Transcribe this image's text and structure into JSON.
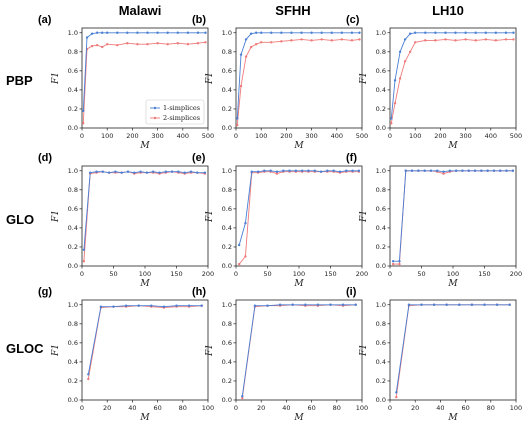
{
  "columns": [
    "Malawi",
    "SFHH",
    "LH10"
  ],
  "rows": [
    "PBP",
    "GLO",
    "GLOC"
  ],
  "panel_labels": [
    "(a)",
    "(b)",
    "(c)",
    "(d)",
    "(e)",
    "(f)",
    "(g)",
    "(h)",
    "(i)"
  ],
  "colors": {
    "series1": "#4a7fd4",
    "series2": "#ef7a7a",
    "axis": "#222222"
  },
  "chart_data": [
    {
      "type": "line",
      "panel": "(a)",
      "xlabel": "M",
      "ylabel": "F1",
      "xlim": [
        0,
        500
      ],
      "ylim": [
        0,
        1.05
      ],
      "xticks": [
        0,
        100,
        200,
        300,
        400,
        500
      ],
      "yticks": [
        0.0,
        0.2,
        0.4,
        0.6,
        0.8,
        1.0
      ],
      "legend": "center",
      "series": [
        {
          "name": "1-simplices",
          "x": [
            5,
            20,
            40,
            60,
            80,
            100,
            140,
            180,
            220,
            260,
            300,
            340,
            380,
            420,
            460,
            490
          ],
          "values": [
            0.18,
            0.95,
            0.99,
            1.0,
            1.0,
            1.0,
            1.0,
            1.0,
            1.0,
            1.0,
            1.0,
            1.0,
            1.0,
            1.0,
            1.0,
            1.0
          ]
        },
        {
          "name": "2-simplices",
          "x": [
            5,
            20,
            40,
            60,
            80,
            100,
            140,
            180,
            220,
            260,
            300,
            340,
            380,
            420,
            460,
            490
          ],
          "values": [
            0.05,
            0.83,
            0.86,
            0.87,
            0.85,
            0.88,
            0.87,
            0.89,
            0.88,
            0.88,
            0.89,
            0.88,
            0.89,
            0.88,
            0.89,
            0.9
          ]
        }
      ]
    },
    {
      "type": "line",
      "panel": "(b)",
      "xlabel": "M",
      "ylabel": "F1",
      "xlim": [
        0,
        500
      ],
      "ylim": [
        0,
        1.05
      ],
      "xticks": [
        0,
        100,
        200,
        300,
        400,
        500
      ],
      "yticks": [
        0.0,
        0.2,
        0.4,
        0.6,
        0.8,
        1.0
      ],
      "series": [
        {
          "x": [
            5,
            20,
            40,
            60,
            80,
            100,
            140,
            180,
            220,
            260,
            300,
            340,
            380,
            420,
            460,
            490
          ],
          "values": [
            0.1,
            0.77,
            0.93,
            0.99,
            1.0,
            1.0,
            1.0,
            1.0,
            1.0,
            1.0,
            1.0,
            1.0,
            1.0,
            1.0,
            1.0,
            1.0
          ]
        },
        {
          "x": [
            5,
            20,
            40,
            60,
            80,
            100,
            140,
            180,
            220,
            260,
            300,
            340,
            380,
            420,
            460,
            490
          ],
          "values": [
            0.03,
            0.44,
            0.75,
            0.85,
            0.88,
            0.9,
            0.9,
            0.91,
            0.92,
            0.93,
            0.92,
            0.93,
            0.92,
            0.93,
            0.92,
            0.93
          ]
        }
      ]
    },
    {
      "type": "line",
      "panel": "(c)",
      "xlabel": "M",
      "ylabel": "F1",
      "xlim": [
        0,
        500
      ],
      "ylim": [
        0,
        1.05
      ],
      "xticks": [
        0,
        100,
        200,
        300,
        400,
        500
      ],
      "yticks": [
        0.0,
        0.2,
        0.4,
        0.6,
        0.8,
        1.0
      ],
      "series": [
        {
          "x": [
            5,
            20,
            40,
            60,
            80,
            100,
            140,
            180,
            220,
            260,
            300,
            340,
            380,
            420,
            460,
            490
          ],
          "values": [
            0.1,
            0.5,
            0.8,
            0.93,
            0.99,
            1.0,
            1.0,
            1.0,
            1.0,
            1.0,
            1.0,
            1.0,
            1.0,
            1.0,
            1.0,
            1.0
          ]
        },
        {
          "x": [
            5,
            20,
            40,
            60,
            80,
            100,
            140,
            180,
            220,
            260,
            300,
            340,
            380,
            420,
            460,
            490
          ],
          "values": [
            0.05,
            0.26,
            0.52,
            0.7,
            0.8,
            0.9,
            0.92,
            0.92,
            0.93,
            0.92,
            0.93,
            0.92,
            0.93,
            0.92,
            0.93,
            0.93
          ]
        }
      ]
    },
    {
      "type": "line",
      "panel": "(d)",
      "xlabel": "M",
      "ylabel": "F1",
      "xlim": [
        0,
        200
      ],
      "ylim": [
        0,
        1.05
      ],
      "xticks": [
        0,
        50,
        100,
        150,
        200
      ],
      "yticks": [
        0.0,
        0.2,
        0.4,
        0.6,
        0.8,
        1.0
      ],
      "series": [
        {
          "x": [
            3,
            13,
            23,
            33,
            43,
            53,
            63,
            73,
            83,
            93,
            103,
            113,
            123,
            133,
            143,
            153,
            163,
            173,
            183,
            195
          ],
          "values": [
            0.17,
            0.98,
            0.99,
            0.99,
            0.98,
            0.99,
            0.98,
            0.99,
            0.98,
            0.99,
            0.98,
            0.99,
            0.98,
            0.99,
            0.99,
            0.99,
            0.98,
            0.99,
            0.98,
            0.98
          ]
        },
        {
          "x": [
            3,
            13,
            23,
            33,
            43,
            53,
            63,
            73,
            83,
            93,
            103,
            113,
            123,
            133,
            143,
            153,
            163,
            173,
            183,
            195
          ],
          "values": [
            0.05,
            0.97,
            0.98,
            0.99,
            0.98,
            0.98,
            0.98,
            0.99,
            0.97,
            0.98,
            0.98,
            0.98,
            0.97,
            0.98,
            0.99,
            0.98,
            0.97,
            0.98,
            0.98,
            0.97
          ]
        }
      ]
    },
    {
      "type": "line",
      "panel": "(e)",
      "xlabel": "M",
      "ylabel": "F1",
      "xlim": [
        0,
        200
      ],
      "ylim": [
        0,
        1.05
      ],
      "xticks": [
        0,
        50,
        100,
        150,
        200
      ],
      "yticks": [
        0.0,
        0.2,
        0.4,
        0.6,
        0.8,
        1.0
      ],
      "series": [
        {
          "x": [
            5,
            15,
            25,
            35,
            45,
            55,
            65,
            75,
            85,
            95,
            105,
            115,
            125,
            135,
            145,
            155,
            165,
            175,
            185,
            195
          ],
          "values": [
            0.22,
            0.45,
            0.99,
            0.99,
            1.0,
            1.0,
            0.99,
            1.0,
            1.0,
            1.0,
            1.0,
            1.0,
            1.0,
            0.99,
            1.0,
            1.0,
            0.99,
            1.0,
            1.0,
            1.0
          ]
        },
        {
          "x": [
            5,
            15,
            25,
            35,
            45,
            55,
            65,
            75,
            85,
            95,
            105,
            115,
            125,
            135,
            145,
            155,
            165,
            175,
            185,
            195
          ],
          "values": [
            0.02,
            0.1,
            0.98,
            0.98,
            0.99,
            0.99,
            0.97,
            0.99,
            0.99,
            0.99,
            0.99,
            0.99,
            0.99,
            0.99,
            0.99,
            0.99,
            0.98,
            0.99,
            0.99,
            0.99
          ]
        }
      ]
    },
    {
      "type": "line",
      "panel": "(f)",
      "xlabel": "M",
      "ylabel": "F1",
      "xlim": [
        0,
        200
      ],
      "ylim": [
        0,
        1.05
      ],
      "xticks": [
        0,
        50,
        100,
        150,
        200
      ],
      "yticks": [
        0.0,
        0.2,
        0.4,
        0.6,
        0.8,
        1.0
      ],
      "series": [
        {
          "x": [
            5,
            15,
            25,
            35,
            45,
            55,
            65,
            75,
            85,
            95,
            105,
            115,
            125,
            135,
            145,
            155,
            165,
            175,
            185,
            195
          ],
          "values": [
            0.05,
            0.05,
            1.0,
            1.0,
            1.0,
            1.0,
            1.0,
            1.0,
            0.99,
            1.0,
            1.0,
            1.0,
            1.0,
            1.0,
            1.0,
            1.0,
            1.0,
            1.0,
            1.0,
            1.0
          ]
        },
        {
          "x": [
            5,
            15,
            25,
            35,
            45,
            55,
            65,
            75,
            85,
            95,
            105,
            115,
            125,
            135,
            145,
            155,
            165,
            175,
            185,
            195
          ],
          "values": [
            0.02,
            0.02,
            1.0,
            1.0,
            1.0,
            1.0,
            1.0,
            0.99,
            0.97,
            0.99,
            1.0,
            1.0,
            1.0,
            1.0,
            1.0,
            1.0,
            1.0,
            1.0,
            1.0,
            1.0
          ]
        }
      ]
    },
    {
      "type": "line",
      "panel": "(g)",
      "xlabel": "M",
      "ylabel": "F1",
      "xlim": [
        0,
        100
      ],
      "ylim": [
        0,
        1.05
      ],
      "xticks": [
        0,
        20,
        40,
        60,
        80,
        100
      ],
      "yticks": [
        0.0,
        0.2,
        0.4,
        0.6,
        0.8,
        1.0
      ],
      "series": [
        {
          "x": [
            5,
            15,
            25,
            35,
            45,
            55,
            65,
            75,
            85,
            95
          ],
          "values": [
            0.27,
            0.98,
            0.98,
            0.99,
            0.99,
            0.99,
            0.98,
            0.99,
            0.99,
            0.99
          ]
        },
        {
          "x": [
            5,
            15,
            25,
            35,
            45,
            55,
            65,
            75,
            85,
            95
          ],
          "values": [
            0.22,
            0.97,
            0.98,
            0.98,
            0.99,
            0.98,
            0.97,
            0.98,
            0.98,
            0.99
          ]
        }
      ]
    },
    {
      "type": "line",
      "panel": "(h)",
      "xlabel": "M",
      "ylabel": "F1",
      "xlim": [
        0,
        100
      ],
      "ylim": [
        0,
        1.05
      ],
      "xticks": [
        0,
        20,
        40,
        60,
        80,
        100
      ],
      "yticks": [
        0.0,
        0.2,
        0.4,
        0.6,
        0.8,
        1.0
      ],
      "series": [
        {
          "x": [
            5,
            15,
            25,
            35,
            45,
            55,
            65,
            75,
            85,
            95
          ],
          "values": [
            0.04,
            0.99,
            0.99,
            1.0,
            1.0,
            1.0,
            1.0,
            1.0,
            1.0,
            1.0
          ]
        },
        {
          "x": [
            5,
            15,
            25,
            35,
            45,
            55,
            65,
            75,
            85,
            95
          ],
          "values": [
            0.02,
            0.98,
            0.99,
            0.99,
            1.0,
            0.99,
            0.99,
            1.0,
            0.99,
            1.0
          ]
        }
      ]
    },
    {
      "type": "line",
      "panel": "(i)",
      "xlabel": "M",
      "ylabel": "F1",
      "xlim": [
        0,
        100
      ],
      "ylim": [
        0,
        1.05
      ],
      "xticks": [
        0,
        20,
        40,
        60,
        80,
        100
      ],
      "yticks": [
        0.0,
        0.2,
        0.4,
        0.6,
        0.8,
        1.0
      ],
      "series": [
        {
          "x": [
            5,
            15,
            25,
            35,
            45,
            55,
            65,
            75,
            85,
            95
          ],
          "values": [
            0.08,
            1.0,
            1.0,
            1.0,
            1.0,
            1.0,
            1.0,
            1.0,
            1.0,
            1.0
          ]
        },
        {
          "x": [
            5,
            15,
            25,
            35,
            45,
            55,
            65,
            75,
            85,
            95
          ],
          "values": [
            0.03,
            0.99,
            1.0,
            1.0,
            1.0,
            1.0,
            1.0,
            1.0,
            1.0,
            1.0
          ]
        }
      ]
    }
  ]
}
